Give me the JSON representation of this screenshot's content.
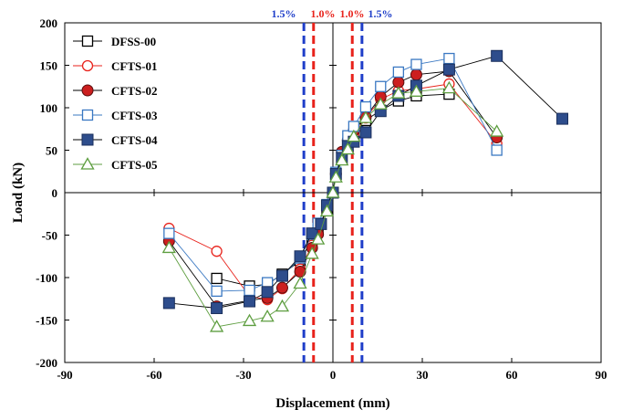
{
  "chart_data": {
    "type": "scatter",
    "xlabel": "Displacement (mm)",
    "ylabel": "Load (kN)",
    "xlim": [
      -90,
      90
    ],
    "ylim": [
      -200,
      200
    ],
    "xticks": [
      "-90",
      "-60",
      "-30",
      "0",
      "30",
      "60",
      "90"
    ],
    "yticks": [
      "200",
      "150",
      "100",
      "50",
      "0",
      "-50",
      "-100",
      "-150",
      "-200"
    ],
    "grid": false,
    "legend_position": "top-left",
    "drift_lines": [
      {
        "label": "1.5%",
        "x": -9.75,
        "color": "#1f3ec9"
      },
      {
        "label": "1.0%",
        "x": -6.5,
        "color": "#e8221b"
      },
      {
        "label": "1.0%",
        "x": 6.5,
        "color": "#e8221b"
      },
      {
        "label": "1.5%",
        "x": 9.75,
        "color": "#1f3ec9"
      }
    ],
    "series": [
      {
        "name": "DFSS-00",
        "marker": "square-open",
        "color": "#000000",
        "line_color": "#000000",
        "points": [
          [
            -39,
            -101
          ],
          [
            -28,
            -110
          ],
          [
            -22,
            -108
          ],
          [
            -17,
            -96
          ],
          [
            -11,
            -80
          ],
          [
            -7,
            -55
          ],
          [
            -5,
            -44
          ],
          [
            -2,
            -20
          ],
          [
            0,
            0
          ],
          [
            1,
            20
          ],
          [
            3,
            40
          ],
          [
            5,
            55
          ],
          [
            7,
            68
          ],
          [
            11,
            85
          ],
          [
            16,
            97
          ],
          [
            22,
            108
          ],
          [
            28,
            114
          ],
          [
            39,
            116
          ]
        ]
      },
      {
        "name": "CFTS-01",
        "marker": "circle-open",
        "color": "#e8221b",
        "line_color": "#e8221b",
        "points": [
          [
            -55,
            -42
          ],
          [
            -39,
            -69
          ],
          [
            -28,
            -122
          ],
          [
            -22,
            -126
          ],
          [
            -17,
            -113
          ],
          [
            -11,
            -90
          ],
          [
            -7,
            -62
          ],
          [
            -5,
            -48
          ],
          [
            -2,
            -18
          ],
          [
            0,
            0
          ],
          [
            1,
            20
          ],
          [
            3,
            42
          ],
          [
            5,
            56
          ],
          [
            7,
            68
          ],
          [
            11,
            88
          ],
          [
            16,
            110
          ],
          [
            22,
            120
          ],
          [
            28,
            122
          ],
          [
            39,
            128
          ],
          [
            55,
            58
          ]
        ]
      },
      {
        "name": "CFTS-02",
        "marker": "circle-filled",
        "color": "#cc1f1f",
        "line_color": "#000000",
        "points": [
          [
            -55,
            -57
          ],
          [
            -39,
            -134
          ],
          [
            -28,
            -127
          ],
          [
            -22,
            -124
          ],
          [
            -17,
            -112
          ],
          [
            -11,
            -93
          ],
          [
            -7,
            -65
          ],
          [
            -5,
            -49
          ],
          [
            -2,
            -17
          ],
          [
            0,
            0
          ],
          [
            1,
            22
          ],
          [
            3,
            48
          ],
          [
            5,
            62
          ],
          [
            7,
            73
          ],
          [
            11,
            89
          ],
          [
            16,
            113
          ],
          [
            22,
            130
          ],
          [
            28,
            139
          ],
          [
            39,
            143
          ],
          [
            55,
            65
          ]
        ]
      },
      {
        "name": "CFTS-03",
        "marker": "square-open",
        "color": "#3a78c2",
        "line_color": "#3a78c2",
        "points": [
          [
            -55,
            -48
          ],
          [
            -39,
            -116
          ],
          [
            -28,
            -115
          ],
          [
            -22,
            -106
          ],
          [
            -17,
            -98
          ],
          [
            -11,
            -77
          ],
          [
            -7,
            -49
          ],
          [
            -5,
            -36
          ],
          [
            -2,
            -14
          ],
          [
            0,
            0
          ],
          [
            1,
            24
          ],
          [
            3,
            44
          ],
          [
            5,
            67
          ],
          [
            7,
            78
          ],
          [
            11,
            101
          ],
          [
            16,
            125
          ],
          [
            22,
            142
          ],
          [
            28,
            151
          ],
          [
            39,
            158
          ],
          [
            55,
            50
          ]
        ]
      },
      {
        "name": "CFTS-04",
        "marker": "square-filled",
        "color": "#2e4d8c",
        "line_color": "#000000",
        "points": [
          [
            -55,
            -130
          ],
          [
            -39,
            -136
          ],
          [
            -28,
            -128
          ],
          [
            -22,
            -117
          ],
          [
            -17,
            -98
          ],
          [
            -11,
            -75
          ],
          [
            -7,
            -48
          ],
          [
            -4,
            -37
          ],
          [
            -2,
            -15
          ],
          [
            0,
            0
          ],
          [
            1,
            22
          ],
          [
            3,
            41
          ],
          [
            5,
            55
          ],
          [
            7,
            60
          ],
          [
            11,
            71
          ],
          [
            16,
            96
          ],
          [
            22,
            114
          ],
          [
            28,
            126
          ],
          [
            39,
            145
          ],
          [
            55,
            161
          ],
          [
            77,
            87
          ]
        ]
      },
      {
        "name": "CFTS-05",
        "marker": "triangle-open",
        "color": "#5e9e40",
        "line_color": "#5e9e40",
        "points": [
          [
            -55,
            -65
          ],
          [
            -39,
            -158
          ],
          [
            -28,
            -151
          ],
          [
            -22,
            -146
          ],
          [
            -17,
            -134
          ],
          [
            -11,
            -107
          ],
          [
            -7,
            -72
          ],
          [
            -5,
            -55
          ],
          [
            -2,
            -22
          ],
          [
            0,
            0
          ],
          [
            1,
            18
          ],
          [
            3,
            38
          ],
          [
            5,
            51
          ],
          [
            7,
            66
          ],
          [
            11,
            88
          ],
          [
            16,
            104
          ],
          [
            22,
            117
          ],
          [
            28,
            119
          ],
          [
            39,
            123
          ],
          [
            55,
            72
          ]
        ]
      }
    ]
  }
}
